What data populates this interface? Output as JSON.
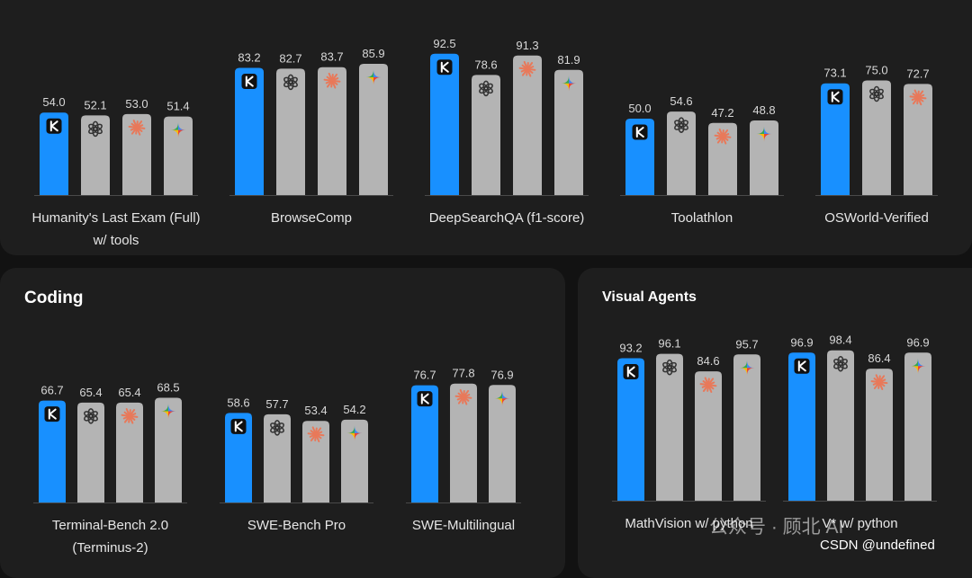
{
  "colors": {
    "kimi": "#1890ff",
    "other": "#b4b4b4",
    "logo_bg": "#111111",
    "claude": "#e8795a",
    "gemini": [
      "#4285f4",
      "#ea4335",
      "#fbbc05",
      "#34a853"
    ]
  },
  "panels": {
    "top": {
      "title": ""
    },
    "coding": {
      "title": "Coding"
    },
    "visual": {
      "title": "Visual Agents"
    }
  },
  "watermark": {
    "wechat": "公众号 · 顾北 AI",
    "csdn": "CSDN @undefined"
  },
  "chart_data": [
    {
      "type": "bar",
      "panel": "top",
      "title": "",
      "groups": [
        {
          "category": [
            "Humanity's Last Exam (Full)",
            "w/ tools"
          ],
          "bars": [
            {
              "model": "kimi",
              "value": 54.0
            },
            {
              "model": "openai",
              "value": 52.1
            },
            {
              "model": "claude",
              "value": 53.0
            },
            {
              "model": "gemini",
              "value": 51.4
            }
          ]
        },
        {
          "category": [
            "BrowseComp"
          ],
          "bars": [
            {
              "model": "kimi",
              "value": 83.2
            },
            {
              "model": "openai",
              "value": 82.7
            },
            {
              "model": "claude",
              "value": 83.7
            },
            {
              "model": "gemini",
              "value": 85.9
            }
          ]
        },
        {
          "category": [
            "DeepSearchQA (f1-score)"
          ],
          "bars": [
            {
              "model": "kimi",
              "value": 92.5
            },
            {
              "model": "openai",
              "value": 78.6
            },
            {
              "model": "claude",
              "value": 91.3
            },
            {
              "model": "gemini",
              "value": 81.9
            }
          ]
        },
        {
          "category": [
            "Toolathlon"
          ],
          "bars": [
            {
              "model": "kimi",
              "value": 50.0
            },
            {
              "model": "openai",
              "value": 54.6
            },
            {
              "model": "claude",
              "value": 47.2
            },
            {
              "model": "gemini",
              "value": 48.8
            }
          ]
        },
        {
          "category": [
            "OSWorld-Verified"
          ],
          "bars": [
            {
              "model": "kimi",
              "value": 73.1
            },
            {
              "model": "openai",
              "value": 75.0
            },
            {
              "model": "claude",
              "value": 72.7
            }
          ]
        }
      ]
    },
    {
      "type": "bar",
      "panel": "coding",
      "title": "Coding",
      "groups": [
        {
          "category": [
            "Terminal-Bench 2.0",
            "(Terminus-2)"
          ],
          "bars": [
            {
              "model": "kimi",
              "value": 66.7
            },
            {
              "model": "openai",
              "value": 65.4
            },
            {
              "model": "claude",
              "value": 65.4
            },
            {
              "model": "gemini",
              "value": 68.5
            }
          ]
        },
        {
          "category": [
            "SWE-Bench Pro"
          ],
          "bars": [
            {
              "model": "kimi",
              "value": 58.6
            },
            {
              "model": "openai",
              "value": 57.7
            },
            {
              "model": "claude",
              "value": 53.4
            },
            {
              "model": "gemini",
              "value": 54.2
            }
          ]
        },
        {
          "category": [
            "SWE-Multilingual"
          ],
          "bars": [
            {
              "model": "kimi",
              "value": 76.7
            },
            {
              "model": "claude",
              "value": 77.8
            },
            {
              "model": "gemini",
              "value": 76.9
            }
          ]
        }
      ]
    },
    {
      "type": "bar",
      "panel": "visual",
      "title": "Visual Agents",
      "groups": [
        {
          "category": [
            "MathVision w/ python"
          ],
          "bars": [
            {
              "model": "kimi",
              "value": 93.2
            },
            {
              "model": "openai",
              "value": 96.1
            },
            {
              "model": "claude",
              "value": 84.6
            },
            {
              "model": "gemini",
              "value": 95.7
            }
          ]
        },
        {
          "category": [
            "V* w/ python"
          ],
          "bars": [
            {
              "model": "kimi",
              "value": 96.9
            },
            {
              "model": "openai",
              "value": 98.4
            },
            {
              "model": "claude",
              "value": 86.4
            },
            {
              "model": "gemini",
              "value": 96.9
            }
          ]
        }
      ]
    }
  ]
}
